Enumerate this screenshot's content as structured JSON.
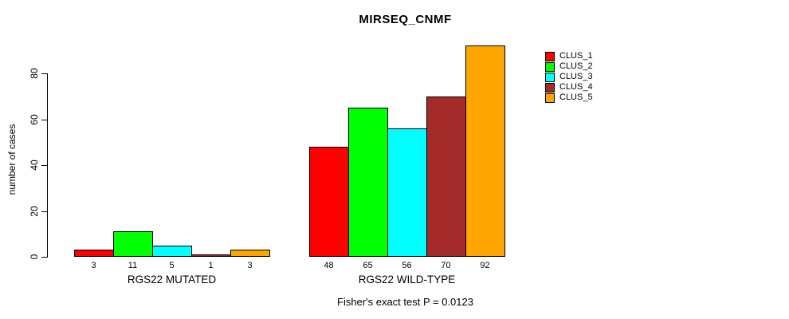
{
  "figure": {
    "title": "MIRSEQ_CNMF",
    "y_axis": {
      "label": "number of cases",
      "ticks": [
        0,
        20,
        40,
        60,
        80
      ]
    },
    "annotation": "Fisher's exact test P = 0.0123"
  },
  "legend": {
    "items": [
      {
        "label": "CLUS_1",
        "color": "#FF0000"
      },
      {
        "label": "CLUS_2",
        "color": "#00FF00"
      },
      {
        "label": "CLUS_3",
        "color": "#00FFFF"
      },
      {
        "label": "CLUS_4",
        "color": "#A52A2A"
      },
      {
        "label": "CLUS_5",
        "color": "#FFA500"
      }
    ]
  },
  "chart_data": {
    "type": "bar",
    "title": "MIRSEQ_CNMF",
    "ylabel": "number of cases",
    "xlabel": "",
    "ylim": [
      0,
      92
    ],
    "yticks": [
      0,
      20,
      40,
      60,
      80
    ],
    "grid": false,
    "legend_position": "right",
    "bar_value_labels": true,
    "categories": [
      "RGS22 MUTATED",
      "RGS22 WILD-TYPE"
    ],
    "series": [
      {
        "name": "CLUS_1",
        "color": "#FF0000",
        "values": [
          3,
          48
        ]
      },
      {
        "name": "CLUS_2",
        "color": "#00FF00",
        "values": [
          11,
          65
        ]
      },
      {
        "name": "CLUS_3",
        "color": "#00FFFF",
        "values": [
          5,
          56
        ]
      },
      {
        "name": "CLUS_4",
        "color": "#A52A2A",
        "values": [
          1,
          70
        ]
      },
      {
        "name": "CLUS_5",
        "color": "#FFA500",
        "values": [
          3,
          92
        ]
      }
    ],
    "annotation": "Fisher's exact test P = 0.0123"
  }
}
